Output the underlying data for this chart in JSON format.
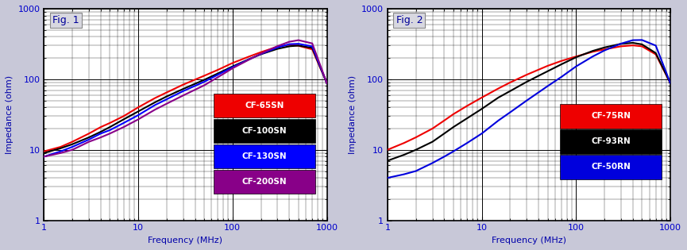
{
  "fig1_title": "Fig. 1",
  "fig2_title": "Fig. 2",
  "xlabel": "Frequency (MHz)",
  "ylabel": "Impedance (ohm)",
  "xlim": [
    1,
    1000
  ],
  "ylim": [
    1,
    1000
  ],
  "outer_bg": "#c8c8d8",
  "plot_bg": "#ffffff",
  "tick_label_color": "#0000cc",
  "axis_label_color": "#0000aa",
  "grid_major_color": "#000000",
  "grid_minor_color": "#000000",
  "grid_major_lw": 0.7,
  "grid_minor_lw": 0.25,
  "fig1_curves": [
    {
      "name": "CF-65SN",
      "color": "#ee0000",
      "freq": [
        1,
        1.5,
        2,
        3,
        4,
        5,
        7,
        10,
        15,
        20,
        30,
        50,
        70,
        100,
        150,
        200,
        300,
        400,
        500,
        700,
        1000
      ],
      "imp": [
        9.5,
        11,
        13,
        17,
        21,
        24,
        30,
        40,
        54,
        65,
        84,
        112,
        136,
        170,
        210,
        242,
        290,
        308,
        298,
        265,
        88
      ]
    },
    {
      "name": "CF-100SN",
      "color": "#000000",
      "freq": [
        1,
        1.5,
        2,
        3,
        4,
        5,
        7,
        10,
        15,
        20,
        30,
        50,
        70,
        100,
        150,
        200,
        300,
        400,
        500,
        700,
        1000
      ],
      "imp": [
        9,
        10.5,
        12,
        15,
        18,
        21,
        27,
        35,
        47,
        57,
        73,
        98,
        121,
        152,
        193,
        226,
        270,
        293,
        300,
        278,
        88
      ]
    },
    {
      "name": "CF-130SN",
      "color": "#0000ff",
      "freq": [
        1,
        1.5,
        2,
        3,
        4,
        5,
        7,
        10,
        15,
        20,
        30,
        50,
        70,
        100,
        150,
        200,
        300,
        400,
        500,
        700,
        1000
      ],
      "imp": [
        8,
        9.5,
        11,
        14,
        17,
        19,
        24,
        31,
        43,
        52,
        68,
        92,
        116,
        148,
        192,
        228,
        283,
        314,
        318,
        292,
        88
      ]
    },
    {
      "name": "CF-200SN",
      "color": "#880088",
      "freq": [
        1,
        1.5,
        2,
        3,
        4,
        5,
        7,
        10,
        15,
        20,
        30,
        50,
        70,
        100,
        150,
        200,
        300,
        400,
        500,
        700,
        1000
      ],
      "imp": [
        8,
        9,
        10,
        13,
        15,
        17,
        21,
        27,
        37,
        45,
        59,
        82,
        107,
        143,
        190,
        231,
        295,
        340,
        358,
        322,
        88
      ]
    }
  ],
  "fig2_curves": [
    {
      "name": "CF-75RN",
      "color": "#ee0000",
      "freq": [
        1,
        1.5,
        2,
        3,
        4,
        5,
        7,
        10,
        15,
        20,
        30,
        50,
        70,
        100,
        150,
        200,
        300,
        400,
        500,
        700,
        1000
      ],
      "imp": [
        10,
        12.5,
        15,
        20,
        26,
        32,
        42,
        55,
        74,
        90,
        116,
        155,
        182,
        210,
        245,
        265,
        293,
        302,
        293,
        225,
        88
      ]
    },
    {
      "name": "CF-93RN",
      "color": "#000000",
      "freq": [
        1,
        1.5,
        2,
        3,
        4,
        5,
        7,
        10,
        15,
        20,
        30,
        50,
        70,
        100,
        150,
        200,
        300,
        400,
        500,
        700,
        1000
      ],
      "imp": [
        7,
        8.5,
        10,
        13,
        17,
        21,
        28,
        38,
        55,
        68,
        92,
        130,
        163,
        205,
        252,
        282,
        318,
        328,
        312,
        235,
        88
      ]
    },
    {
      "name": "CF-50RN",
      "color": "#0000dd",
      "freq": [
        1,
        1.5,
        2,
        3,
        4,
        5,
        7,
        10,
        15,
        20,
        30,
        50,
        70,
        100,
        150,
        200,
        300,
        400,
        500,
        700,
        1000
      ],
      "imp": [
        4,
        4.5,
        5,
        6.5,
        8,
        9.5,
        12.5,
        17,
        26,
        34,
        50,
        80,
        108,
        152,
        210,
        256,
        320,
        358,
        360,
        300,
        88
      ]
    }
  ],
  "fig1_legend": [
    {
      "name": "CF-65SN",
      "color": "#ee0000"
    },
    {
      "name": "CF-100SN",
      "color": "#000000"
    },
    {
      "name": "CF-130SN",
      "color": "#0000ff"
    },
    {
      "name": "CF-200SN",
      "color": "#880088"
    }
  ],
  "fig2_legend": [
    {
      "name": "CF-75RN",
      "color": "#ee0000"
    },
    {
      "name": "CF-93RN",
      "color": "#000000"
    },
    {
      "name": "CF-50RN",
      "color": "#0000dd"
    }
  ]
}
